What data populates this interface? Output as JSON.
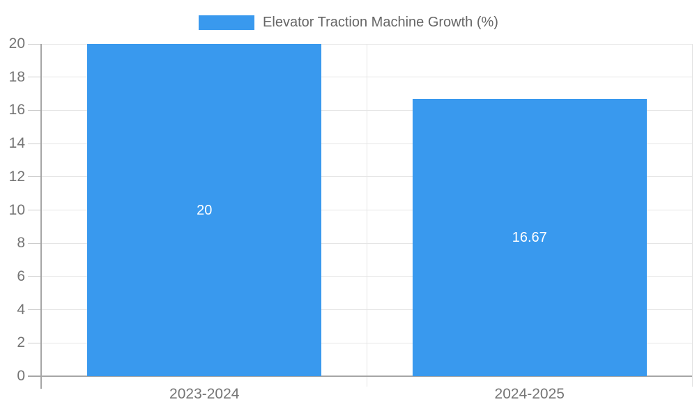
{
  "chart_data": {
    "type": "bar",
    "title": "Elevator Traction Machine Growth (%)",
    "categories": [
      "2023-2024",
      "2024-2025"
    ],
    "values": [
      20,
      16.67
    ],
    "value_labels": [
      "20",
      "16.67"
    ],
    "xlabel": "",
    "ylabel": "",
    "ylim": [
      0,
      20
    ],
    "yticks": [
      0,
      2,
      4,
      6,
      8,
      10,
      12,
      14,
      16,
      18,
      20
    ],
    "grid": true,
    "legend_position": "top-center",
    "legend_entries": [
      "Elevator Traction Machine Growth (%)"
    ]
  },
  "colors": {
    "background": "#ffffff",
    "bar": "#3999EE",
    "value_label": "#ffffff",
    "grid_line": "#e5e5e5",
    "axis_line": "#a6a6a6",
    "tick_mark": "#cccccc",
    "tick_label": "#757575",
    "legend_text": "#666666"
  }
}
